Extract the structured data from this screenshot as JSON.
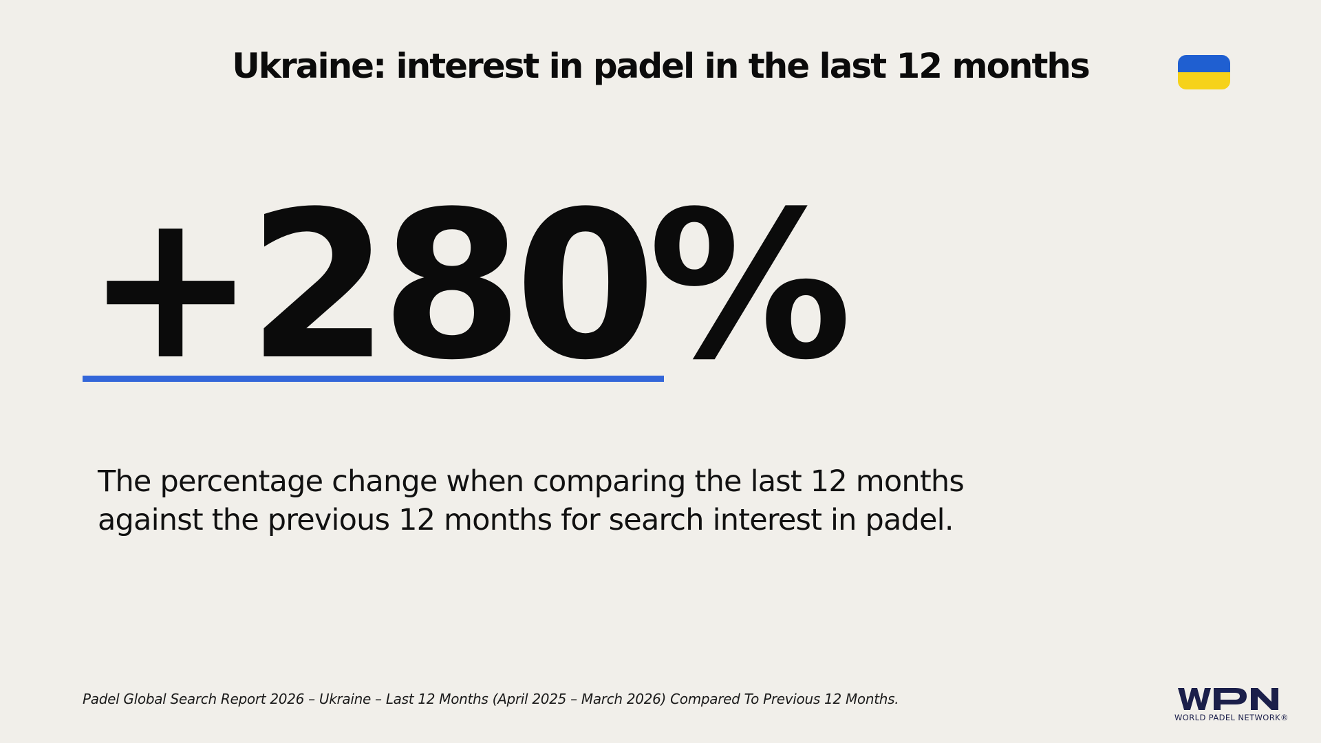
{
  "title": "Ukraine: interest in padel in the last 12 months",
  "flag": {
    "icon": "ukraine-flag-icon",
    "top_color": "#1f5fd1",
    "bottom_color": "#f6d21a"
  },
  "stat": {
    "value": "+280%",
    "underline_color": "#3366d9"
  },
  "description": {
    "line1": "The percentage change when comparing the last 12 months",
    "line2": "against the previous 12 months for search interest in padel."
  },
  "footnote": "Padel Global Search Report 2026 – Ukraine – Last 12 Months (April 2025 – March 2026) Compared To Previous 12 Months.",
  "logo": {
    "icon": "wpn-logo-icon",
    "letters": "WPN",
    "caption": "WORLD PADEL NETWORK®",
    "color": "#1b1f4a"
  }
}
